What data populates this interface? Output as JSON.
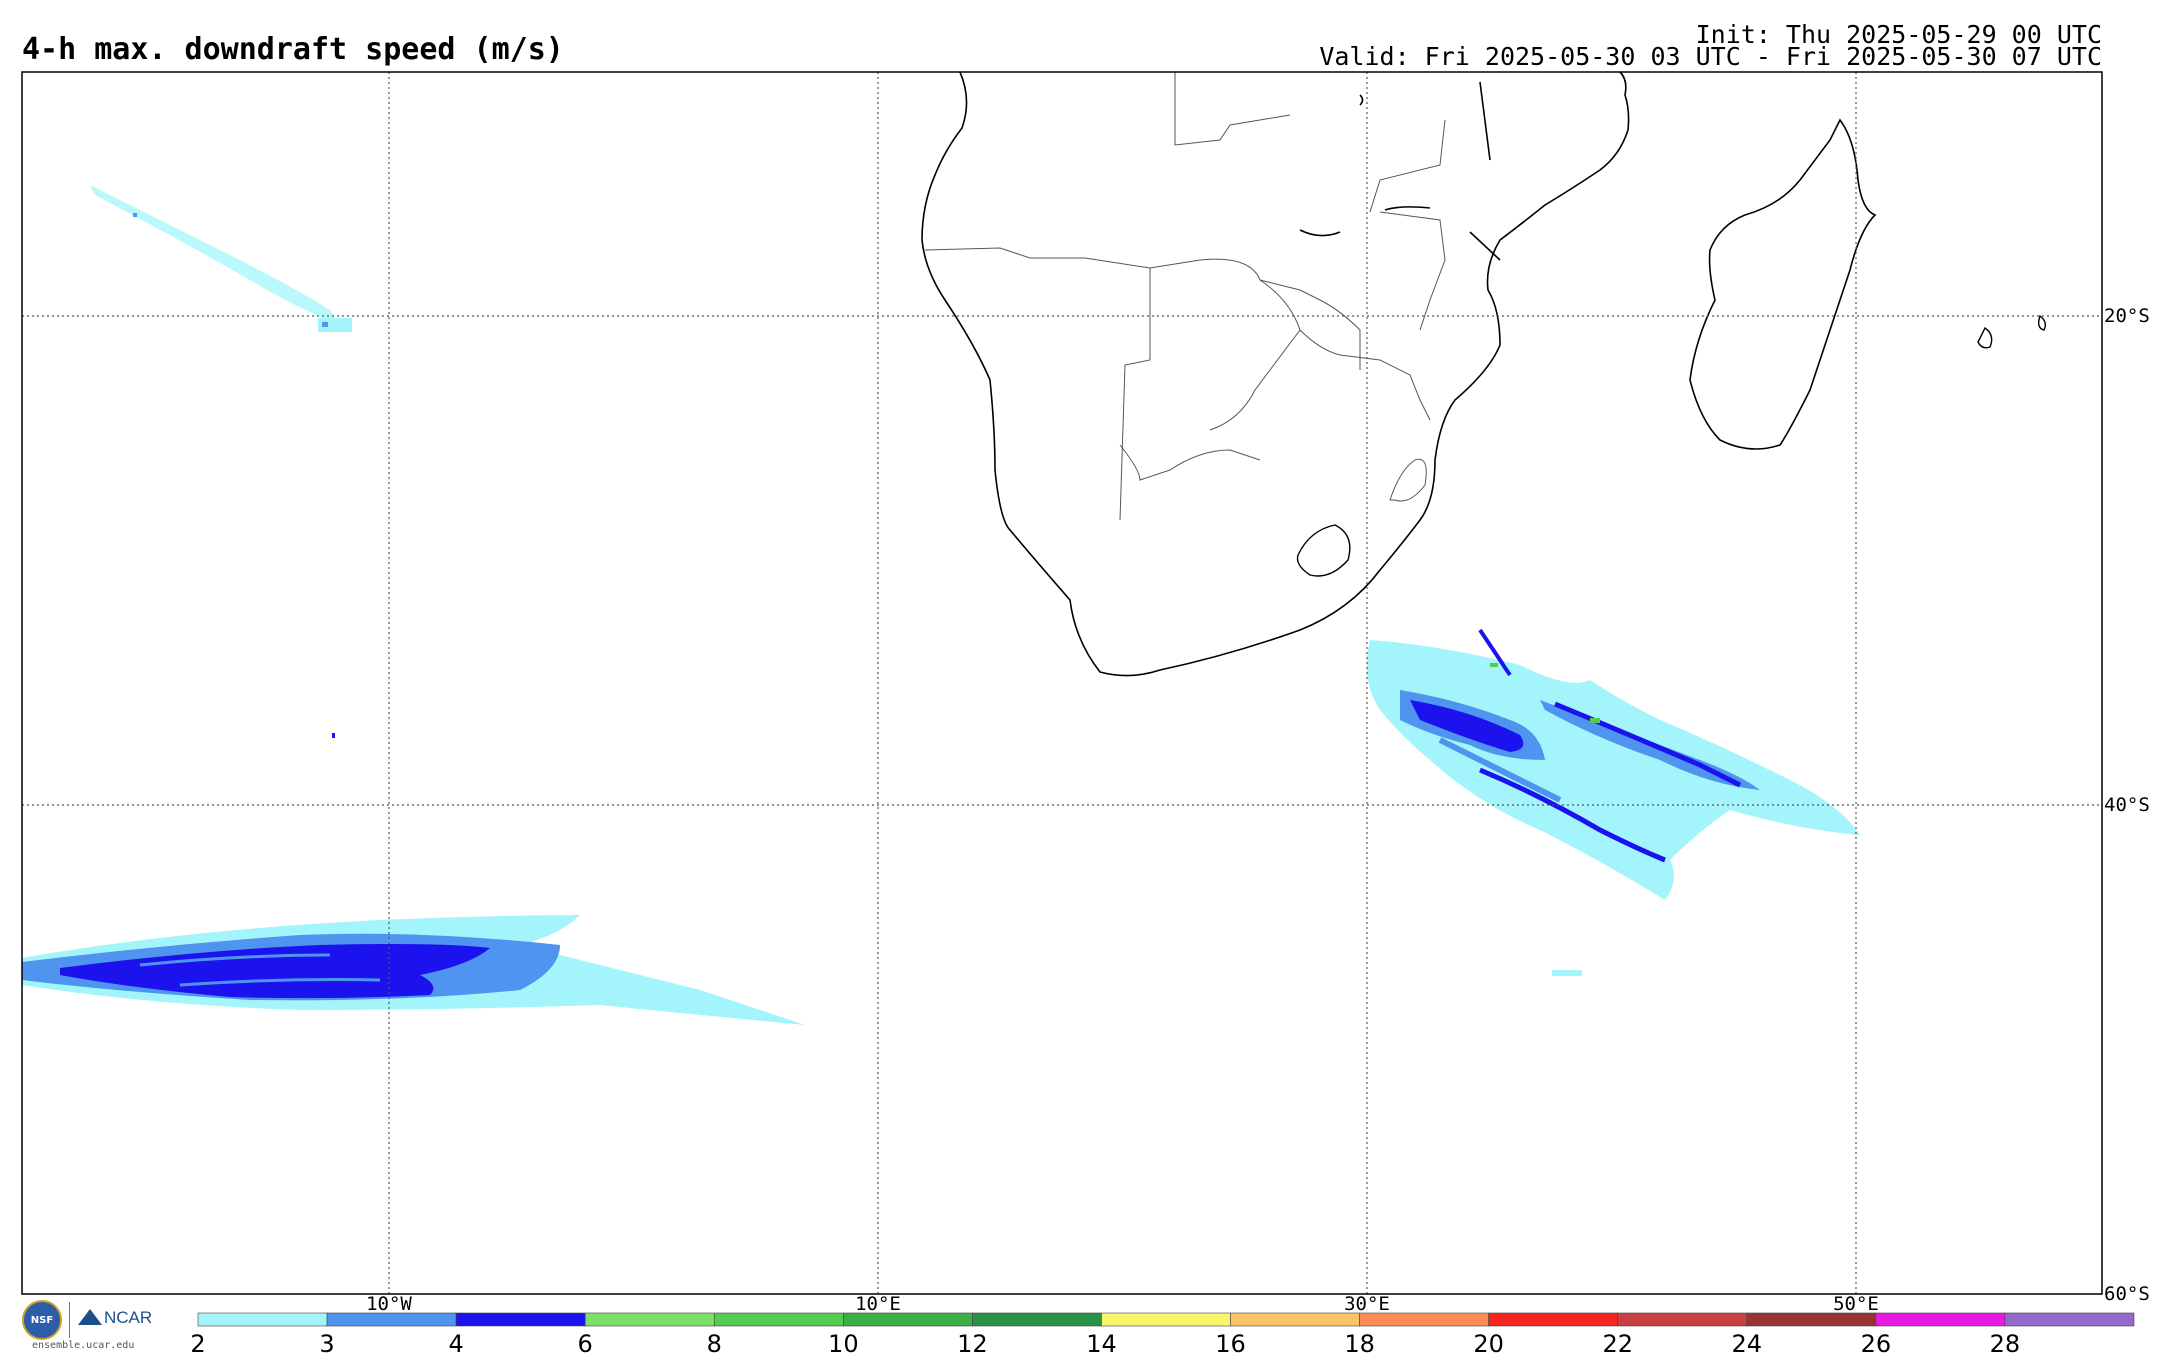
{
  "header": {
    "title": "4-h max. downdraft speed (m/s)",
    "init": "Init: Thu 2025-05-29 00 UTC",
    "valid": "Valid: Fri 2025-05-30 03 UTC - Fri 2025-05-30 07 UTC"
  },
  "map": {
    "lon_labels": [
      "10°W",
      "10°E",
      "30°E",
      "50°E"
    ],
    "lat_labels": [
      "20°S",
      "40°S",
      "60°S"
    ]
  },
  "colorbar": {
    "ticks": [
      "2",
      "3",
      "4",
      "6",
      "8",
      "10",
      "12",
      "14",
      "16",
      "18",
      "20",
      "22",
      "24",
      "26",
      "28"
    ],
    "colors": [
      "#a3f5fb",
      "#4f95ef",
      "#1b12ee",
      "#7ce06a",
      "#56cb52",
      "#3bae45",
      "#289348",
      "#fbf56c",
      "#fbc466",
      "#fb8d52",
      "#f5261f",
      "#c93f42",
      "#9a3434",
      "#ea18e4",
      "#9568cc"
    ]
  },
  "logos": {
    "nsf": "NSF",
    "ncar": "NCAR",
    "site": "ensemble.ucar.edu"
  }
}
